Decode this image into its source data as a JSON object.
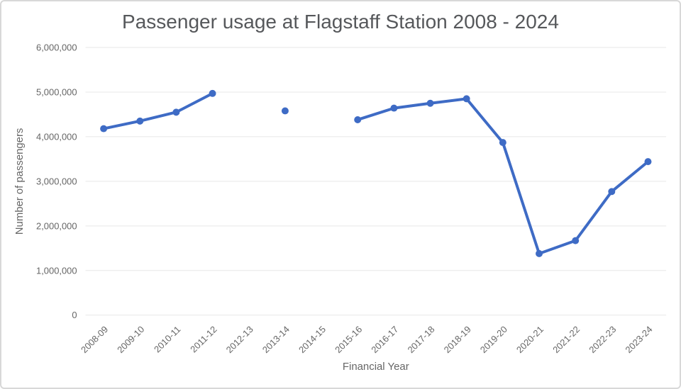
{
  "chart_data": {
    "type": "line",
    "title": "Passenger usage at Flagstaff Station 2008 - 2024",
    "xlabel": "Financial Year",
    "ylabel": "Number of passengers",
    "categories": [
      "2008-09",
      "2009-10",
      "2010-11",
      "2011-12",
      "2012-13",
      "2013-14",
      "2014-15",
      "2015-16",
      "2016-17",
      "2017-18",
      "2018-19",
      "2019-20",
      "2020-21",
      "2021-22",
      "2022-23",
      "2023-24"
    ],
    "values": [
      4180000,
      4350000,
      4550000,
      4970000,
      null,
      4580000,
      null,
      4380000,
      4640000,
      4750000,
      4850000,
      3870000,
      1380000,
      1670000,
      2770000,
      3440000
    ],
    "missing_categories": [
      "2012-13",
      "2014-15"
    ],
    "y_ticks": [
      0,
      1000000,
      2000000,
      3000000,
      4000000,
      5000000,
      6000000
    ],
    "y_tick_labels": [
      "0",
      "1,000,000",
      "2,000,000",
      "3,000,000",
      "4,000,000",
      "5,000,000",
      "6,000,000"
    ],
    "ylim": [
      0,
      6000000
    ],
    "grid": "horizontal-only",
    "legend": "none",
    "marker_style": "circle",
    "line_width": 4,
    "marker_radius": 5,
    "colors": {
      "series": "#3e6bc5",
      "gridline": "#e7e7e7",
      "tick_text": "#666666",
      "axis_title_text": "#666666",
      "chart_title_text": "#56585b",
      "frame_border": "#d8d8d8",
      "background": "#ffffff"
    }
  }
}
